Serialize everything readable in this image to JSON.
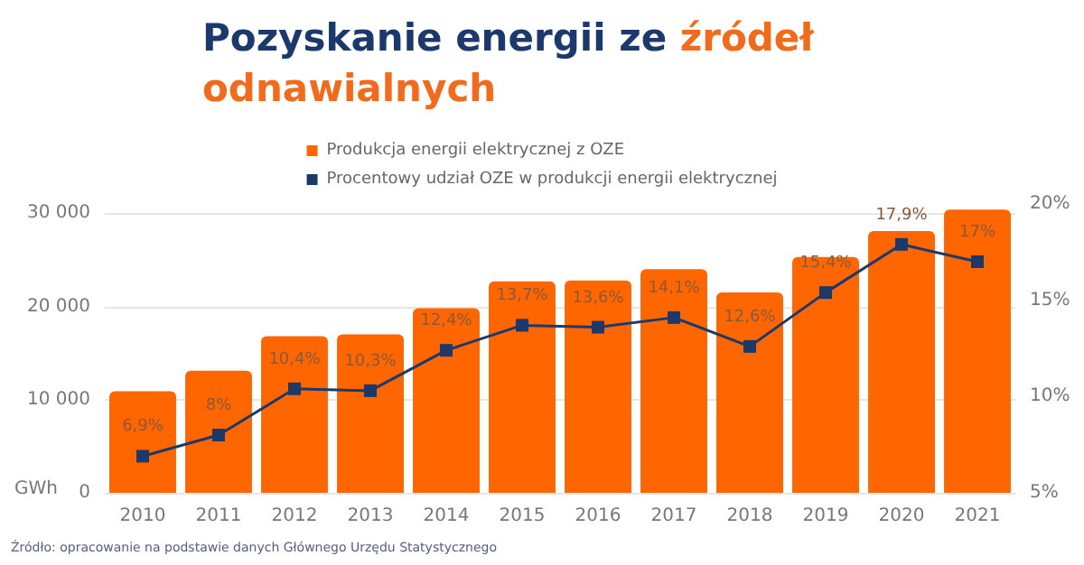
{
  "chart_data": {
    "type": "bar",
    "title": "Pozyskanie energii ze źródeł odnawialnych",
    "ylabel": "GWh",
    "categories": [
      "2010",
      "2011",
      "2012",
      "2013",
      "2014",
      "2015",
      "2016",
      "2017",
      "2018",
      "2019",
      "2020",
      "2021"
    ],
    "series": [
      {
        "name": "Produkcja energii elektrycznej z OZE",
        "color": "#ff6600",
        "values": [
          10900,
          13100,
          16800,
          17000,
          19800,
          22700,
          22800,
          24000,
          21500,
          25300,
          28100,
          30400
        ]
      },
      {
        "name": "Procentowy udział OZE w produkcji energii elektrycznej",
        "type": "line",
        "axis": "y2",
        "color": "#1b3a6b",
        "marker": "square",
        "values": [
          6.9,
          8,
          10.4,
          10.3,
          12.4,
          13.7,
          13.6,
          14.1,
          12.6,
          15.4,
          17.9,
          17
        ],
        "value_labels": [
          "6,9%",
          "8%",
          "10,4%",
          "10,3%",
          "12,4%",
          "13,7%",
          "13,6%",
          "14,1%",
          "12,6%",
          "15,4%",
          "17,9%",
          "17%"
        ]
      }
    ],
    "ylim": [
      0,
      31000
    ],
    "yticks": [
      0,
      {
        "value": 10000,
        "label": "10 000"
      },
      {
        "value": 20000,
        "label": "20 000"
      },
      {
        "value": 30000,
        "label": "30 000"
      }
    ],
    "y2lim": [
      5,
      20
    ],
    "y2ticks": [
      {
        "value": 5,
        "label": "5%"
      },
      {
        "value": 10,
        "label": "10%"
      },
      {
        "value": 15,
        "label": "15%"
      },
      {
        "value": 20,
        "label": "20%"
      }
    ],
    "grid": "y",
    "legend": "top",
    "annotations": [
      "Źródło: opracowanie na podstawie danych Głównego Urzędu Statystycznego"
    ]
  }
}
